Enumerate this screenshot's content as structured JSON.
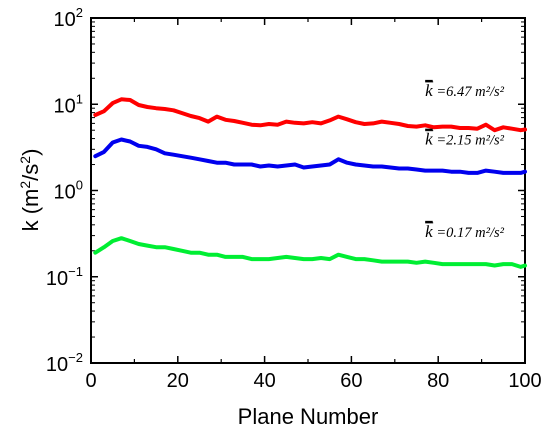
{
  "chart_data": {
    "type": "line",
    "title": "",
    "xlabel": "Plane Number",
    "ylabel_parts": {
      "base": "k (m",
      "sup1": "2",
      "mid": "/s",
      "sup2": "2",
      "close": ")"
    },
    "xlim": [
      0,
      100
    ],
    "ylim": [
      0.01,
      100
    ],
    "yscale": "log",
    "grid": false,
    "legend": "none",
    "x_ticks": [
      "0",
      "20",
      "40",
      "60",
      "80",
      "100"
    ],
    "y_ticks": [
      {
        "base": "10",
        "exp": "2"
      },
      {
        "base": "10",
        "exp": "1"
      },
      {
        "base": "10",
        "exp": "0"
      },
      {
        "base": "10",
        "exp": "−1"
      },
      {
        "base": "10",
        "exp": "−2"
      }
    ],
    "series": [
      {
        "color": "#ff0000",
        "x": [
          1,
          3,
          5,
          7,
          9,
          11,
          13,
          15,
          17,
          19,
          21,
          23,
          25,
          27,
          29,
          31,
          33,
          35,
          37,
          39,
          41,
          43,
          45,
          47,
          49,
          51,
          53,
          55,
          57,
          59,
          61,
          63,
          65,
          67,
          69,
          71,
          73,
          75,
          77,
          79,
          81,
          83,
          85,
          87,
          89,
          91,
          93,
          95,
          97,
          99,
          100
        ],
        "y": [
          7.5,
          8.3,
          10.3,
          11.4,
          11.2,
          9.8,
          9.3,
          9.0,
          8.8,
          8.5,
          7.9,
          7.3,
          6.9,
          6.3,
          7.2,
          6.6,
          6.4,
          6.1,
          5.8,
          5.7,
          5.9,
          5.8,
          6.3,
          6.1,
          6.0,
          6.2,
          6.0,
          6.5,
          7.2,
          6.7,
          6.2,
          5.9,
          6.0,
          6.3,
          6.1,
          5.9,
          5.6,
          5.5,
          5.7,
          5.4,
          5.5,
          5.5,
          5.3,
          5.3,
          5.2,
          5.8,
          5.0,
          5.4,
          5.2,
          5.0,
          5.1
        ]
      },
      {
        "color": "#0000ee",
        "x": [
          1,
          3,
          5,
          7,
          9,
          11,
          13,
          15,
          17,
          19,
          21,
          23,
          25,
          27,
          29,
          31,
          33,
          35,
          37,
          39,
          41,
          43,
          45,
          47,
          49,
          51,
          53,
          55,
          57,
          59,
          61,
          63,
          65,
          67,
          69,
          71,
          73,
          75,
          77,
          79,
          81,
          83,
          85,
          87,
          89,
          91,
          93,
          95,
          97,
          99,
          100
        ],
        "y": [
          2.5,
          2.8,
          3.6,
          3.9,
          3.7,
          3.3,
          3.2,
          3.0,
          2.7,
          2.6,
          2.5,
          2.4,
          2.3,
          2.2,
          2.1,
          2.1,
          2.0,
          2.0,
          2.0,
          1.9,
          1.95,
          1.9,
          1.95,
          2.0,
          1.85,
          1.9,
          1.95,
          2.0,
          2.3,
          2.1,
          2.0,
          1.95,
          1.9,
          1.9,
          1.85,
          1.8,
          1.8,
          1.75,
          1.7,
          1.7,
          1.7,
          1.65,
          1.65,
          1.6,
          1.6,
          1.7,
          1.65,
          1.6,
          1.6,
          1.6,
          1.65
        ]
      },
      {
        "color": "#00ee33",
        "x": [
          1,
          3,
          5,
          7,
          9,
          11,
          13,
          15,
          17,
          19,
          21,
          23,
          25,
          27,
          29,
          31,
          33,
          35,
          37,
          39,
          41,
          43,
          45,
          47,
          49,
          51,
          53,
          55,
          57,
          59,
          61,
          63,
          65,
          67,
          69,
          71,
          73,
          75,
          77,
          79,
          81,
          83,
          85,
          87,
          89,
          91,
          93,
          95,
          97,
          99,
          100
        ],
        "y": [
          0.19,
          0.22,
          0.26,
          0.28,
          0.26,
          0.24,
          0.23,
          0.22,
          0.22,
          0.21,
          0.2,
          0.19,
          0.19,
          0.18,
          0.18,
          0.17,
          0.17,
          0.17,
          0.16,
          0.16,
          0.16,
          0.165,
          0.17,
          0.165,
          0.16,
          0.16,
          0.165,
          0.16,
          0.18,
          0.17,
          0.16,
          0.16,
          0.155,
          0.15,
          0.15,
          0.15,
          0.15,
          0.145,
          0.15,
          0.145,
          0.14,
          0.14,
          0.14,
          0.14,
          0.14,
          0.14,
          0.135,
          0.14,
          0.14,
          0.13,
          0.135
        ]
      }
    ],
    "annotations": [
      {
        "symbol": "k",
        "text": " =6.47 m²/s²",
        "x": 77,
        "y": 12.5
      },
      {
        "symbol": "k",
        "text": " =2.15 m²/s²",
        "x": 77,
        "y": 3.4
      },
      {
        "symbol": "k",
        "text": " =0.17 m²/s²",
        "x": 77,
        "y": 0.29
      }
    ]
  }
}
